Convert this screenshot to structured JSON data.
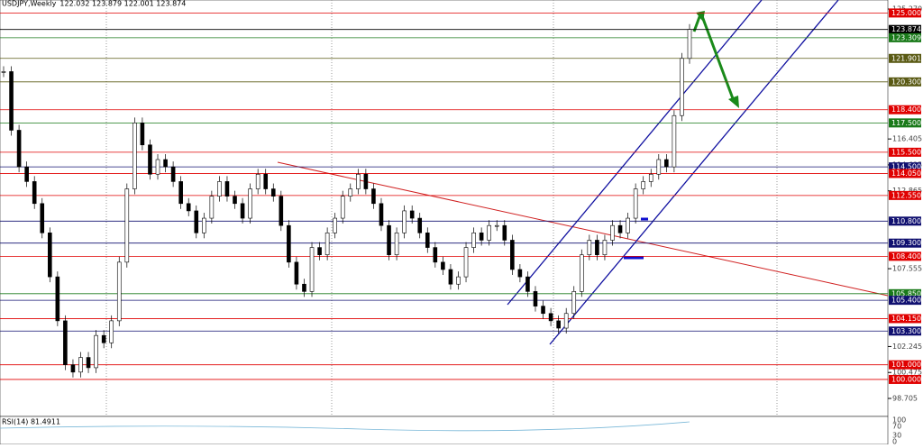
{
  "header": {
    "title": "USDJPY,Weekly",
    "ohlc": "122.032 123.879 122.001 123.874"
  },
  "chart_data": {
    "type": "candlestick-levels",
    "ylim": [
      98.705,
      125.27
    ],
    "yticks": [
      {
        "value": 125.27,
        "label": "125.270"
      },
      {
        "value": 116.405,
        "label": "116.405"
      },
      {
        "value": 114.635,
        "label": "114.635"
      },
      {
        "value": 112.865,
        "label": "112.865"
      },
      {
        "value": 107.555,
        "label": "107.555"
      },
      {
        "value": 102.245,
        "label": "102.245"
      },
      {
        "value": 100.475,
        "label": "100.475"
      },
      {
        "value": 98.705,
        "label": "98.705"
      }
    ],
    "levels": [
      {
        "value": 125,
        "label": "125.000",
        "color": "#e00000"
      },
      {
        "value": 123.874,
        "label": "123.874",
        "color": "#000000"
      },
      {
        "value": 123.309,
        "label": "123.309",
        "color": "#1a7a1a"
      },
      {
        "value": 121.901,
        "label": "121.901",
        "color": "#5a5a14"
      },
      {
        "value": 120.3,
        "label": "120.300",
        "color": "#5a5a14"
      },
      {
        "value": 118.4,
        "label": "118.400",
        "color": "#e00000"
      },
      {
        "value": 117.5,
        "label": "117.500",
        "color": "#1a7a1a"
      },
      {
        "value": 115.5,
        "label": "115.500",
        "color": "#e00000"
      },
      {
        "value": 114.5,
        "label": "114.500",
        "color": "#101070"
      },
      {
        "value": 114.05,
        "label": "114.050",
        "color": "#e00000"
      },
      {
        "value": 112.55,
        "label": "112.550",
        "color": "#e00000"
      },
      {
        "value": 110.8,
        "label": "110.800",
        "color": "#101070"
      },
      {
        "value": 109.3,
        "label": "109.300",
        "color": "#101070"
      },
      {
        "value": 108.4,
        "label": "108.400",
        "color": "#e00000"
      },
      {
        "value": 105.85,
        "label": "105.850",
        "color": "#1a7a1a"
      },
      {
        "value": 105.4,
        "label": "105.400",
        "color": "#101070"
      },
      {
        "value": 104.15,
        "label": "104.150",
        "color": "#e00000"
      },
      {
        "value": 103.3,
        "label": "103.300",
        "color": "#101070"
      },
      {
        "value": 101,
        "label": "101.000",
        "color": "#e00000"
      },
      {
        "value": 100,
        "label": "100.000",
        "color": "#e00000"
      }
    ],
    "closes": [
      121,
      117,
      114.5,
      113.5,
      112,
      110,
      107,
      104,
      101,
      100.5,
      101.5,
      100.8,
      103,
      102.5,
      104,
      108,
      113,
      117.5,
      116,
      114,
      115,
      114.5,
      113.5,
      112,
      111.5,
      110,
      111,
      112.5,
      113.5,
      112.5,
      112,
      111,
      113,
      114,
      113,
      112.5,
      110.5,
      108,
      106.5,
      106,
      109,
      108.5,
      110,
      111,
      112.5,
      113,
      114,
      113,
      112,
      110.5,
      108.5,
      110,
      111.5,
      111,
      110,
      109,
      108,
      107.5,
      106.5,
      107,
      109,
      110,
      109.5,
      110.5,
      110.5,
      109.5,
      107.5,
      107,
      106,
      105,
      104.5,
      104,
      103.5,
      104.5,
      106,
      108.5,
      109.5,
      108.5,
      109.5,
      110.5,
      110,
      111,
      113,
      113.5,
      114,
      115,
      114.5,
      118,
      121.901,
      123.874
    ]
  },
  "rsi": {
    "label": "RSI(14) 81.4911",
    "ticks": [
      100,
      70,
      30,
      0
    ]
  }
}
